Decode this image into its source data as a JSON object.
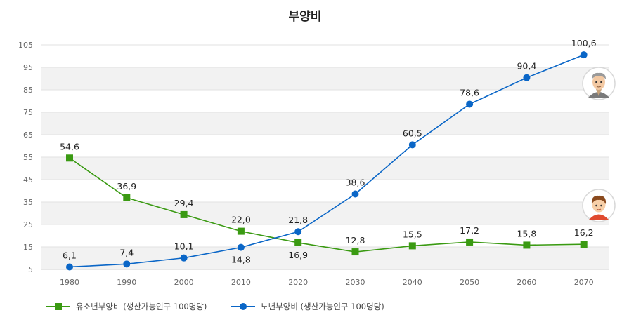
{
  "chart_data": {
    "type": "line",
    "title": "부양비",
    "categories": [
      "1980",
      "1990",
      "2000",
      "2010",
      "2020",
      "2030",
      "2040",
      "2050",
      "2060",
      "2070"
    ],
    "x": [
      1980,
      1990,
      2000,
      2010,
      2020,
      2030,
      2040,
      2050,
      2060,
      2070
    ],
    "ylim": [
      5,
      105
    ],
    "yticks": [
      5,
      15,
      25,
      35,
      45,
      55,
      65,
      75,
      85,
      95,
      105
    ],
    "ytick_labels": [
      "5",
      "15",
      "25",
      "35",
      "45",
      "55",
      "65",
      "75",
      "85",
      "95",
      "105"
    ],
    "grid": "horizontal, alternating shaded bands",
    "legend_position": "bottom-left",
    "series": [
      {
        "name": "유소년부양비 (생산가능인구 100명당)",
        "marker": "square",
        "color": "#3a9a12",
        "values": [
          54.6,
          36.9,
          29.4,
          22.0,
          16.9,
          12.8,
          15.5,
          17.2,
          15.8,
          16.2
        ],
        "labels": [
          "54,6",
          "36,9",
          "29,4",
          "22,0",
          "16,9",
          "12,8",
          "15,5",
          "17,2",
          "15,8",
          "16,2"
        ],
        "label_side": [
          "above",
          "above",
          "above",
          "above",
          "below",
          "above",
          "above",
          "above",
          "above",
          "above"
        ]
      },
      {
        "name": "노년부양비 (생산가능인구 100명당)",
        "marker": "circle",
        "color": "#0a66c7",
        "values": [
          6.1,
          7.4,
          10.1,
          14.8,
          21.8,
          38.6,
          60.5,
          78.6,
          90.4,
          100.6
        ],
        "labels": [
          "6,1",
          "7,4",
          "10,1",
          "14,8",
          "21,8",
          "38,6",
          "60,5",
          "78,6",
          "90,4",
          "100,6"
        ],
        "label_side": [
          "above",
          "above",
          "above",
          "below",
          "above",
          "above",
          "above",
          "above",
          "above",
          "above"
        ]
      }
    ],
    "icons": [
      {
        "name": "elderly-person-icon",
        "series": 1
      },
      {
        "name": "child-icon",
        "series": 0
      }
    ]
  }
}
